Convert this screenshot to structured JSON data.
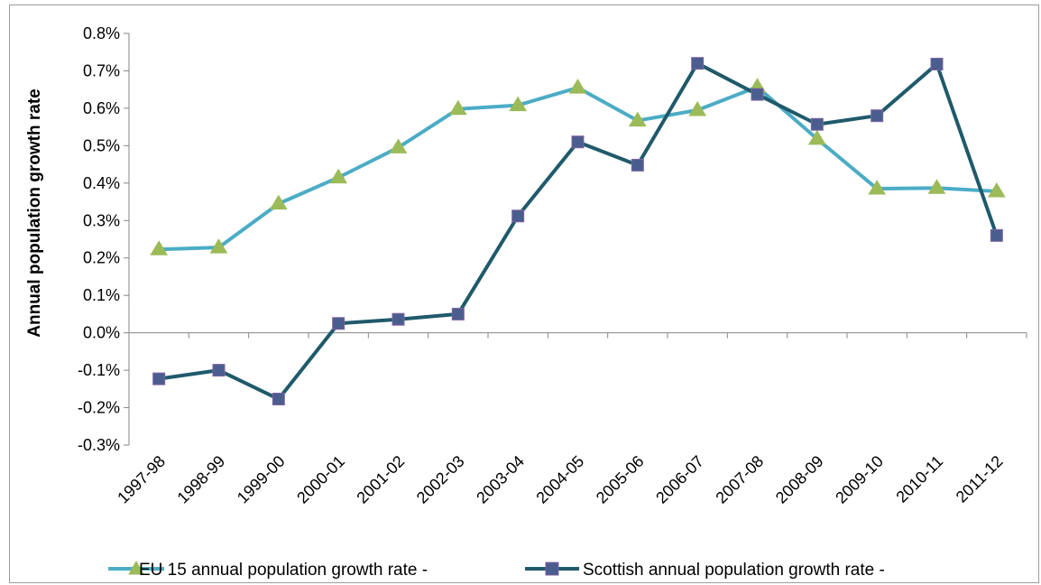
{
  "chart_data": {
    "type": "line",
    "title": "",
    "xlabel": "",
    "ylabel": "Annual population growth rate",
    "ylim": [
      -0.3,
      0.8
    ],
    "ytick_step": 0.1,
    "ytick_labels": [
      "-0.3%",
      "-0.2%",
      "-0.1%",
      "0.0%",
      "0.1%",
      "0.2%",
      "0.3%",
      "0.4%",
      "0.5%",
      "0.6%",
      "0.7%",
      "0.8%"
    ],
    "grid": false,
    "legend_position": "bottom",
    "categories": [
      "1997-98",
      "1998-99",
      "1999-00",
      "2000-01",
      "2001-02",
      "2002-03",
      "2003-04",
      "2004-05",
      "2005-06",
      "2006-07",
      "2007-08",
      "2008-09",
      "2009-10",
      "2010-11",
      "2011-12"
    ],
    "series": [
      {
        "name": "EU 15 annual population growth rate -",
        "marker": "triangle",
        "color": "#4bacc6",
        "marker_fill": "#9bbb59",
        "values": [
          0.223,
          0.228,
          0.345,
          0.415,
          0.495,
          0.598,
          0.608,
          0.655,
          0.567,
          0.595,
          0.657,
          0.518,
          0.385,
          0.387,
          0.378
        ]
      },
      {
        "name": "Scottish annual population growth rate -",
        "marker": "square",
        "color": "#1f5a6b",
        "marker_fill": "#4a5d8f",
        "marker_edge": "#8064a2",
        "values": [
          -0.123,
          -0.1,
          -0.177,
          0.025,
          0.036,
          0.05,
          0.312,
          0.51,
          0.448,
          0.72,
          0.637,
          0.557,
          0.58,
          0.718,
          0.26
        ]
      }
    ]
  }
}
